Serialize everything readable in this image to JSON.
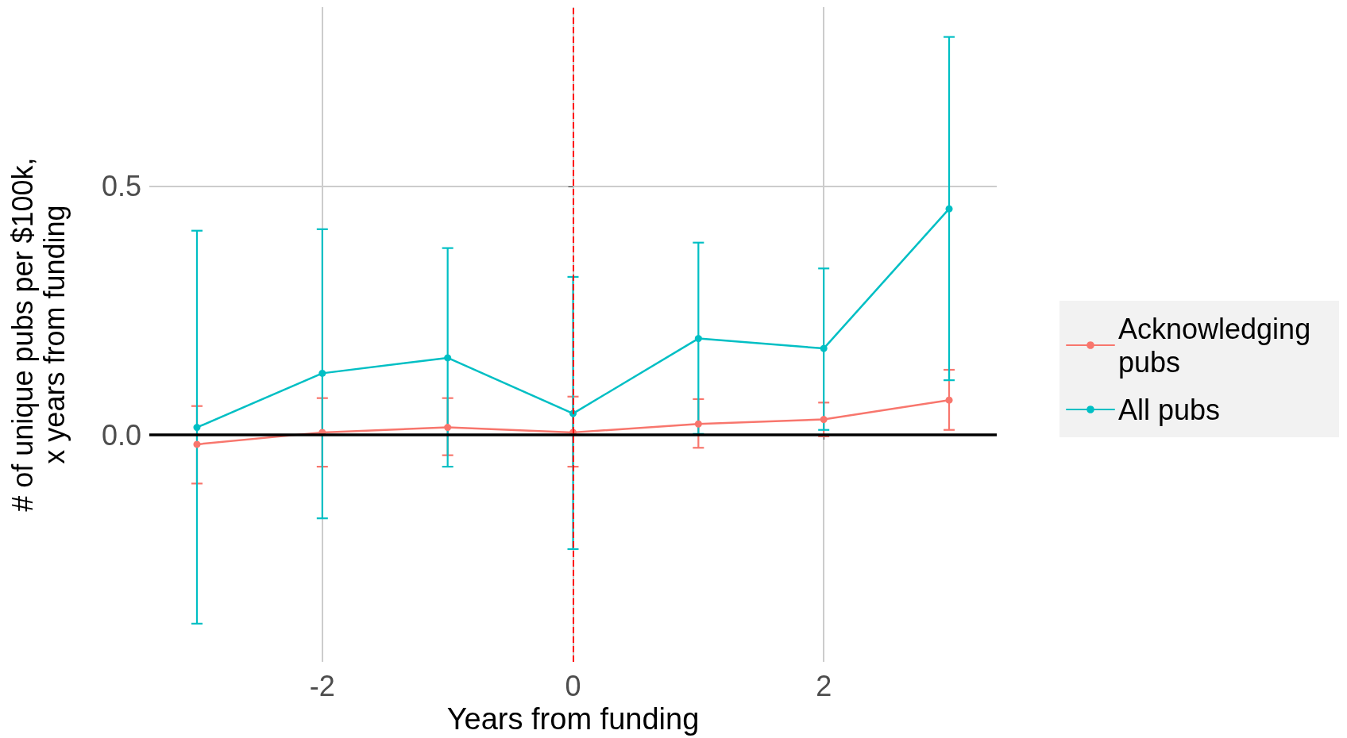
{
  "chart_data": {
    "type": "line",
    "xlabel": "Years from funding",
    "ylabel": "# of unique pubs per $100k,\nx years from funding",
    "x": [
      -3,
      -2,
      -1,
      0,
      1,
      2,
      3
    ],
    "series": [
      {
        "name": "Acknowledging pubs",
        "color": "#f8766d",
        "values": [
          -0.019,
          0.005,
          0.015,
          0.005,
          0.022,
          0.031,
          0.07
        ],
        "errors": [
          [
            -0.098,
            0.058
          ],
          [
            -0.064,
            0.074
          ],
          [
            -0.041,
            0.074
          ],
          [
            -0.064,
            0.077
          ],
          [
            -0.026,
            0.072
          ],
          [
            -0.003,
            0.065
          ],
          [
            0.01,
            0.131
          ]
        ]
      },
      {
        "name": "All pubs",
        "color": "#00bfc4",
        "values": [
          0.015,
          0.124,
          0.155,
          0.043,
          0.194,
          0.174,
          0.455
        ],
        "errors": [
          [
            -0.38,
            0.411
          ],
          [
            -0.168,
            0.414
          ],
          [
            -0.064,
            0.376
          ],
          [
            -0.23,
            0.318
          ],
          [
            0.002,
            0.387
          ],
          [
            0.01,
            0.335
          ],
          [
            0.11,
            0.801
          ]
        ]
      }
    ],
    "xlim": [
      -3.38,
      3.38
    ],
    "xticks": [
      -2,
      0,
      2
    ],
    "ylim": [
      -0.457,
      0.861
    ],
    "yticks": [
      {
        "value": 0,
        "label": "0.0"
      },
      {
        "value": 0.5,
        "label": "0.5"
      }
    ],
    "grid": true,
    "legend": "right",
    "marker": "circle",
    "line_style": "solid",
    "ref_lines": [
      {
        "axis": "y",
        "value": 0,
        "color": "#000000",
        "line_style": "solid"
      },
      {
        "axis": "x",
        "value": 0,
        "color": "#ff0000",
        "line_style": "dashed"
      }
    ]
  }
}
